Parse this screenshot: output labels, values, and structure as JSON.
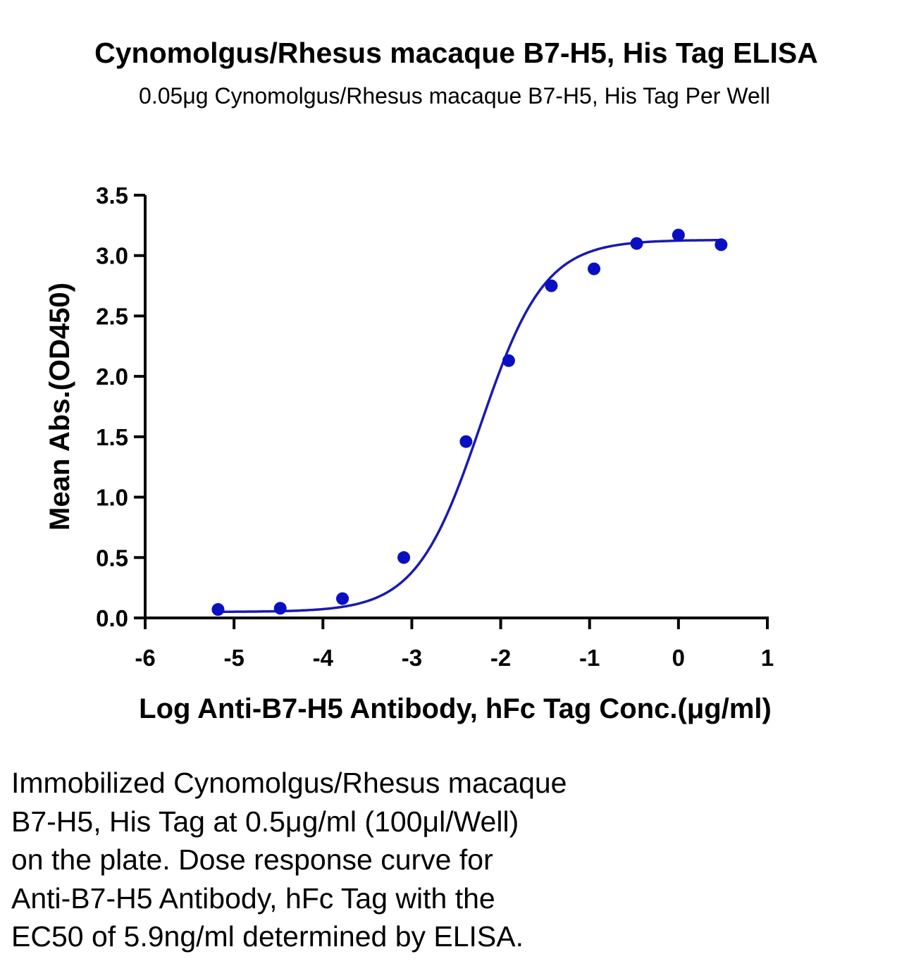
{
  "chart_data": {
    "type": "scatter",
    "title": "Cynomolgus/Rhesus macaque B7-H5, His Tag ELISA",
    "subtitle": "0.05μg Cynomolgus/Rhesus macaque B7-H5, His Tag Per Well",
    "xlabel": "Log Anti-B7-H5 Antibody, hFc Tag Conc.(μg/ml)",
    "ylabel": "Mean Abs.(OD450)",
    "xlim": [
      -6,
      1
    ],
    "ylim": [
      0,
      3.5
    ],
    "xticks": [
      -6,
      -5,
      -4,
      -3,
      -2,
      -1,
      0,
      1
    ],
    "xtick_labels": [
      "-6",
      "-5",
      "-4",
      "-3",
      "-2",
      "-1",
      "0",
      "1"
    ],
    "yticks": [
      0,
      0.5,
      1,
      1.5,
      2,
      2.5,
      3,
      3.5
    ],
    "ytick_labels": [
      "0.0",
      "0.5",
      "1.0",
      "1.5",
      "2.0",
      "2.5",
      "3.0",
      "3.5"
    ],
    "grid": false,
    "series": [
      {
        "x": [
          -5.18,
          -4.48,
          -3.78,
          -3.09,
          -2.39,
          -1.91,
          -1.43,
          -0.95,
          -0.47,
          0.0,
          0.48
        ],
        "y": [
          0.07,
          0.08,
          0.16,
          0.5,
          1.46,
          2.13,
          2.75,
          2.89,
          3.1,
          3.17,
          3.09
        ],
        "color": "#0a10c2"
      }
    ],
    "fit_curve": {
      "type": "4PL",
      "bottom": 0.05,
      "top": 3.13,
      "log_ec50": -2.23,
      "hill_slope": 1.2,
      "x_range": [
        -5.18,
        0.48
      ],
      "color": "#1a1ab0"
    }
  },
  "caption": {
    "lines": [
      "Immobilized Cynomolgus/Rhesus macaque",
      "B7-H5, His Tag at 0.5μg/ml (100μl/Well)",
      "on the plate. Dose response curve for",
      "Anti-B7-H5 Antibody, hFc Tag with the",
      "EC50 of 5.9ng/ml determined by ELISA."
    ]
  }
}
